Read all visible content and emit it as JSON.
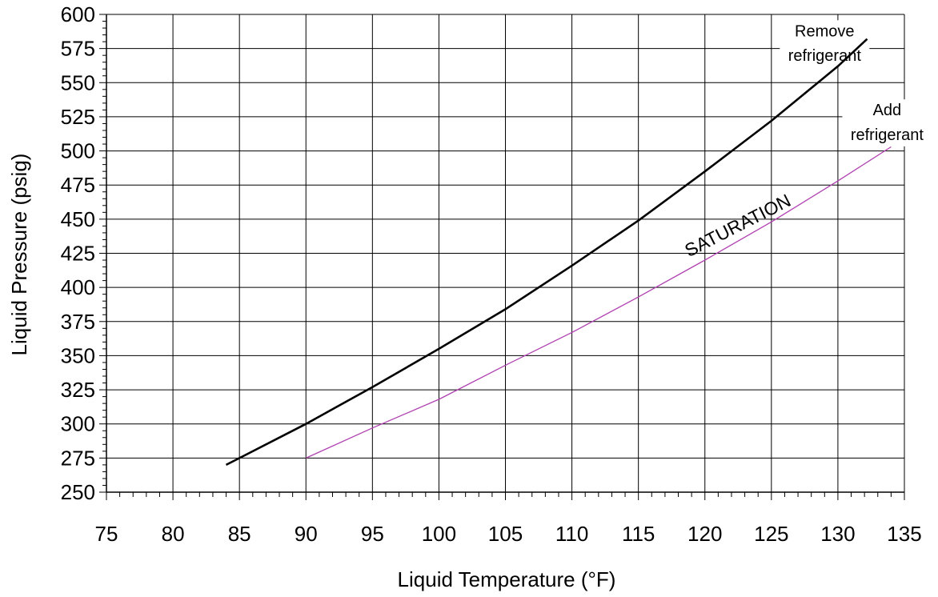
{
  "chart_data": {
    "type": "line",
    "title": "",
    "xlabel": "Liquid Temperature (°F)",
    "ylabel": "Liquid Pressure (psig)",
    "xlim": [
      75,
      135
    ],
    "ylim": [
      250,
      600
    ],
    "x_ticks": [
      75,
      80,
      85,
      90,
      95,
      100,
      105,
      110,
      115,
      120,
      125,
      130,
      135
    ],
    "y_ticks": [
      250,
      275,
      300,
      325,
      350,
      375,
      400,
      425,
      450,
      475,
      500,
      525,
      550,
      575,
      600
    ],
    "grid": true,
    "series": [
      {
        "color": "#000000",
        "x": [
          84,
          85,
          90,
          95,
          100,
          105,
          110,
          115,
          120,
          125,
          130,
          132.2
        ],
        "y": [
          270,
          275,
          300,
          327,
          355,
          384,
          416,
          449,
          485,
          522,
          562,
          582
        ]
      },
      {
        "name": "SATURATION",
        "color": "#b040b0",
        "x": [
          90,
          95,
          100,
          105,
          110,
          115,
          120,
          125,
          130,
          134
        ],
        "y": [
          275,
          297,
          318,
          343,
          367,
          393,
          420,
          448,
          478,
          503
        ]
      }
    ],
    "annotations": [
      {
        "text": "Remove",
        "x": 129.0,
        "y": 584
      },
      {
        "text": "refrigerant",
        "x": 129.0,
        "y": 566
      },
      {
        "text": "Add",
        "x": 133.7,
        "y": 526
      },
      {
        "text": "refrigerant",
        "x": 133.7,
        "y": 508
      }
    ]
  }
}
